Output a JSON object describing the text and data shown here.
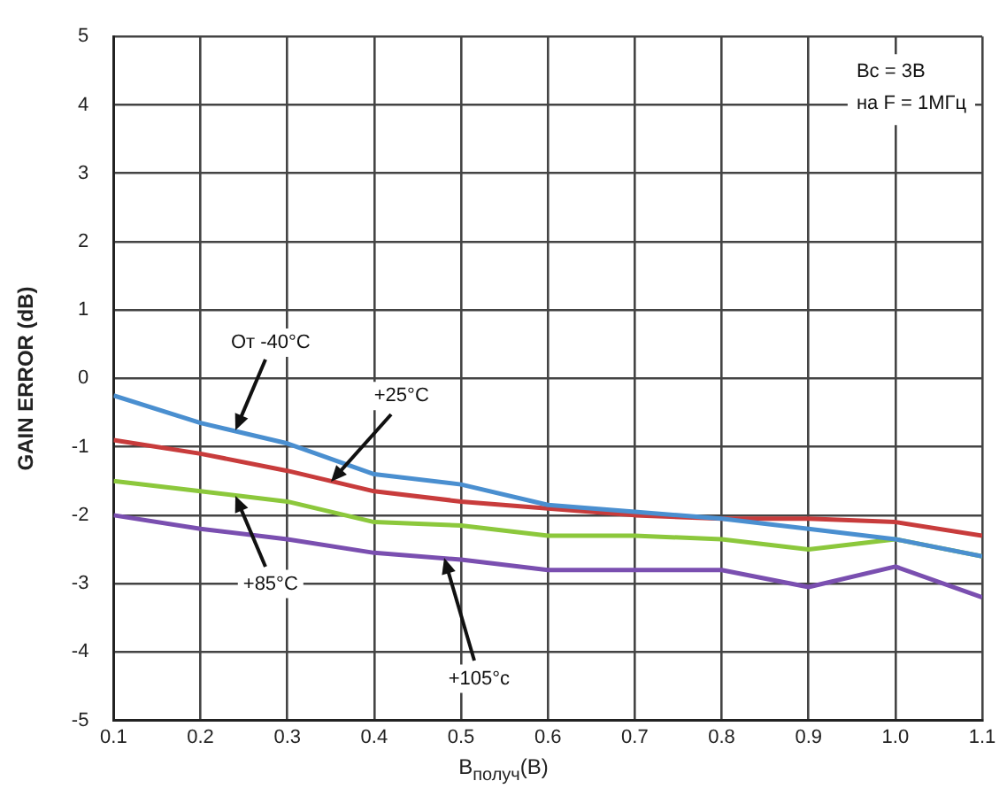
{
  "chart_data": {
    "type": "line",
    "xlabel": "В$_{получ}$(В)",
    "ylabel": "GAIN ERROR (dB)",
    "x": [
      0.1,
      0.2,
      0.3,
      0.4,
      0.5,
      0.6,
      0.7,
      0.8,
      0.9,
      1.0,
      1.1
    ],
    "xlim": [
      0.1,
      1.1
    ],
    "xticks": [
      {
        "value": 0.1,
        "label": "0.1"
      },
      {
        "value": 0.2,
        "label": "0.2"
      },
      {
        "value": 0.3,
        "label": "0.3"
      },
      {
        "value": 0.4,
        "label": "0.4"
      },
      {
        "value": 0.5,
        "label": "0.5"
      },
      {
        "value": 0.6,
        "label": "0.6"
      },
      {
        "value": 0.7,
        "label": "0.7"
      },
      {
        "value": 0.8,
        "label": "0.8"
      },
      {
        "value": 0.9,
        "label": "0.9"
      },
      {
        "value": 1.0,
        "label": "1.0"
      },
      {
        "value": 1.1,
        "label": "1.1"
      }
    ],
    "ylim": [
      -5,
      5
    ],
    "yticks": [
      -5,
      -4,
      -3,
      -2,
      -1,
      0,
      1,
      2,
      3,
      4,
      5
    ],
    "grid": true,
    "legend": false,
    "marker": "none",
    "line_style": "solid",
    "series": [
      {
        "color": "#4a8fd0",
        "values": [
          -0.25,
          -0.65,
          -0.95,
          -1.4,
          -1.55,
          -1.85,
          -1.95,
          -2.05,
          -2.2,
          -2.35,
          -2.6
        ]
      },
      {
        "color": "#c83c3c",
        "values": [
          -0.9,
          -1.1,
          -1.35,
          -1.65,
          -1.8,
          -1.9,
          -2.0,
          -2.05,
          -2.05,
          -2.1,
          -2.3
        ]
      },
      {
        "color": "#8cc83c",
        "values": [
          -1.5,
          -1.65,
          -1.8,
          -2.1,
          -2.15,
          -2.3,
          -2.3,
          -2.35,
          -2.5,
          -2.35,
          -2.6
        ]
      },
      {
        "color": "#7a4fb0",
        "values": [
          -2.0,
          -2.2,
          -2.35,
          -2.55,
          -2.65,
          -2.8,
          -2.8,
          -2.8,
          -3.05,
          -2.75,
          -3.2
        ]
      }
    ],
    "annotations": [
      {
        "text": "От -40°C",
        "x": 0.24,
        "y": -0.77
      },
      {
        "text": "+25°C",
        "x": 0.35,
        "y": -1.5
      },
      {
        "text": "+85°C",
        "x": 0.24,
        "y": -1.71
      },
      {
        "text": "+105°c",
        "x": 0.48,
        "y": -2.63
      },
      "Вс = 3В",
      "на F = 1МГц"
    ]
  }
}
